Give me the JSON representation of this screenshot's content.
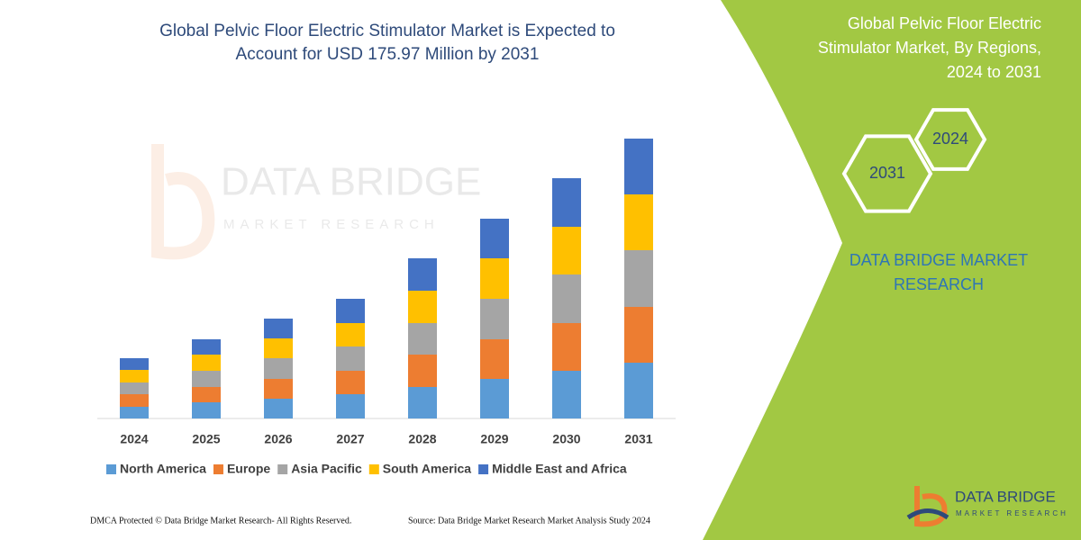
{
  "chart_data": {
    "type": "bar",
    "stacked": true,
    "title": [
      "Global Pelvic Floor Electric Stimulator Market is Expected to",
      "Account for USD 175.97 Million by 2031"
    ],
    "categories": [
      "2024",
      "2025",
      "2026",
      "2027",
      "2028",
      "2029",
      "2030",
      "2031"
    ],
    "ylim": [
      0,
      320
    ],
    "series": [
      {
        "name": "North America",
        "color": "#5b9bd5",
        "values": [
          13,
          18,
          22,
          27,
          35,
          44,
          53,
          62
        ]
      },
      {
        "name": "Europe",
        "color": "#ed7d31",
        "values": [
          14,
          17,
          22,
          26,
          36,
          44,
          53,
          62
        ]
      },
      {
        "name": "Asia Pacific",
        "color": "#a5a5a5",
        "values": [
          13,
          18,
          23,
          27,
          35,
          45,
          54,
          63
        ]
      },
      {
        "name": "South America",
        "color": "#ffc000",
        "values": [
          14,
          18,
          22,
          26,
          36,
          45,
          53,
          62
        ]
      },
      {
        "name": "Middle East and Africa",
        "color": "#4472c4",
        "values": [
          13,
          17,
          22,
          27,
          36,
          44,
          54,
          62
        ]
      }
    ]
  },
  "panel": {
    "title": [
      "Global Pelvic Floor Electric",
      "Stimulator Market, By Regions,",
      "2024 to 2031"
    ],
    "hexagons": [
      "2024",
      "2031"
    ],
    "brand": [
      "DATA BRIDGE MARKET",
      "RESEARCH"
    ]
  },
  "footer": {
    "left": "DMCA Protected © Data Bridge Market Research-  All Rights Reserved.",
    "right": "Source: Data Bridge Market Research  Market Analysis Study 2024"
  },
  "logo": {
    "name": "DATA BRIDGE",
    "tagline": "MARKET RESEARCH"
  }
}
